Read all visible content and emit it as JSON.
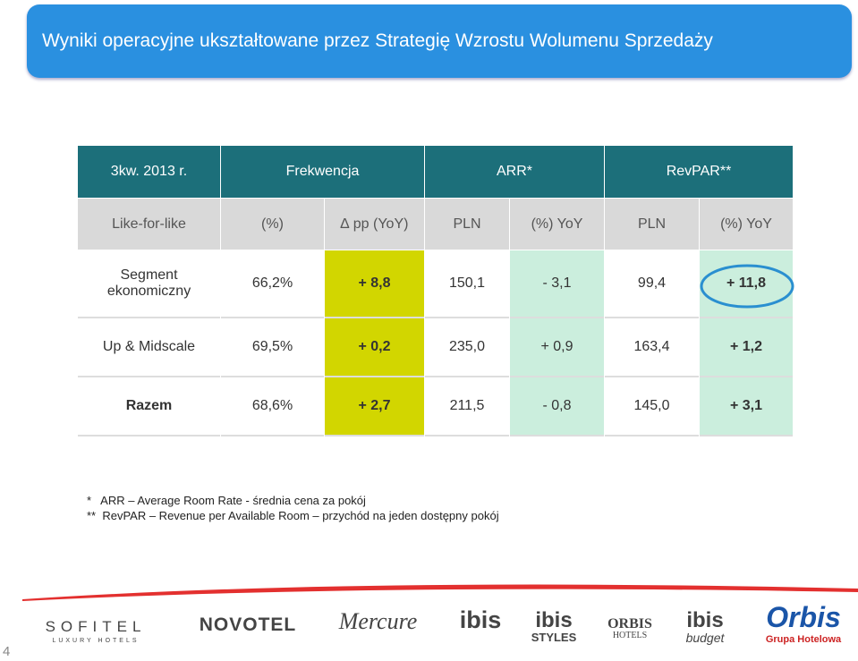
{
  "header": {
    "title": "Wyniki operacyjne ukształtowane przez Strategię Wzrostu Wolumenu Sprzedaży"
  },
  "table": {
    "header_row1": [
      "3kw. 2013 r.",
      "Frekwencja",
      "ARR*",
      "RevPAR**"
    ],
    "header_row2": [
      "Like-for-like",
      "(%)",
      "∆ pp (YoY)",
      "PLN",
      "(%) YoY",
      "PLN",
      "(%) YoY"
    ],
    "rows": [
      [
        "Segment ekonomiczny",
        "66,2%",
        "+ 8,8",
        "150,1",
        "- 3,1",
        "99,4",
        "+ 11,8"
      ],
      [
        "Up & Midscale",
        "69,5%",
        "+ 0,2",
        "235,0",
        "+ 0,9",
        "163,4",
        "+ 1,2"
      ],
      [
        "Razem",
        "68,6%",
        "+ 2,7",
        "211,5",
        "- 0,8",
        "145,0",
        "+ 3,1"
      ]
    ]
  },
  "footnotes": [
    "*   ARR – Average Room Rate - średnia cena za pokój",
    "**  RevPAR – Revenue per Available Room – przychód na jeden dostępny pokój"
  ],
  "logos": [
    "SOFITEL",
    "LUXURY HOTELS",
    "NOVOTEL",
    "Mercure",
    "ibis",
    "ibis",
    "STYLES",
    "ORBIS",
    "HOTELS",
    "ibis",
    "budget",
    "Orbis",
    "Grupa Hotelowa"
  ],
  "page_number": "4"
}
